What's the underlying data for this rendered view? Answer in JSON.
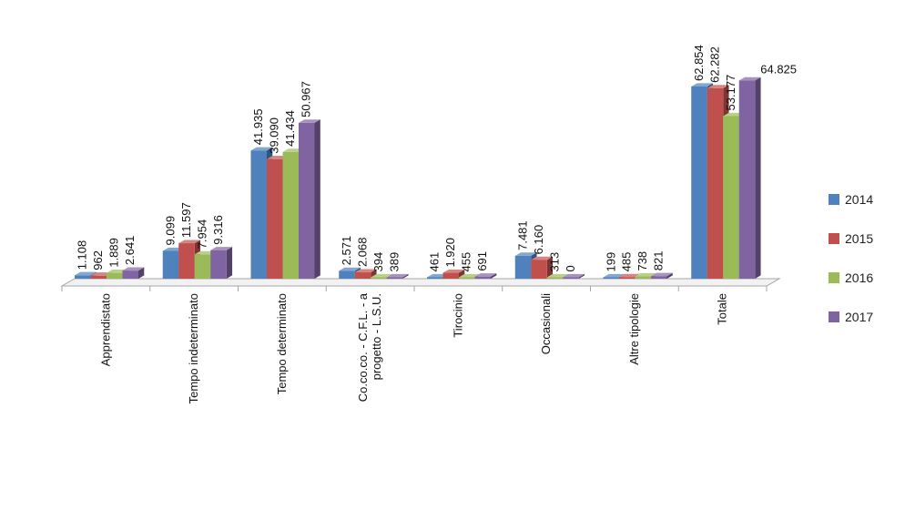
{
  "chart_data": {
    "type": "bar",
    "title": "",
    "xlabel": "",
    "ylabel": "",
    "ylim": [
      0,
      70000
    ],
    "grid": false,
    "legend_position": "right",
    "categories": [
      "Apprendistato",
      "Tempo indeterminato",
      "Tempo determinato",
      "Co.co.co. - C.F.L. - a progetto - L.S.U.",
      "Tirocinio",
      "Occasionali",
      "Altre tipologie",
      "Totale"
    ],
    "category_lines": [
      [
        "Apprendistato"
      ],
      [
        "Tempo indeterminato"
      ],
      [
        "Tempo determinato"
      ],
      [
        "Co.co.co. - C.F.L. - a",
        "progetto - L.S.U."
      ],
      [
        "Tirocinio"
      ],
      [
        "Occasionali"
      ],
      [
        "Altre tipologie"
      ],
      [
        "Totale"
      ]
    ],
    "series": [
      {
        "name": "2014",
        "color": "#4f81bd",
        "values": [
          1108,
          9099,
          41935,
          2571,
          461,
          7481,
          199,
          62854
        ],
        "labels": [
          "1.108",
          "9.099",
          "41.935",
          "2.571",
          "461",
          "7.481",
          "199",
          "62.854"
        ]
      },
      {
        "name": "2015",
        "color": "#c0504d",
        "values": [
          962,
          11597,
          39090,
          2068,
          1920,
          6160,
          485,
          62282
        ],
        "labels": [
          "962",
          "11.597",
          "39.090",
          "2.068",
          "1.920",
          "6.160",
          "485",
          "62.282"
        ]
      },
      {
        "name": "2016",
        "color": "#9bbb59",
        "values": [
          1889,
          7954,
          41434,
          394,
          455,
          313,
          738,
          53177
        ],
        "labels": [
          "1.889",
          "7.954",
          "41.434",
          "394",
          "455",
          "313",
          "738",
          "53.177"
        ]
      },
      {
        "name": "2017",
        "color": "#8064a2",
        "values": [
          2641,
          9316,
          50967,
          389,
          691,
          0,
          821,
          64825
        ],
        "labels": [
          "2.641",
          "9.316",
          "50.967",
          "389",
          "691",
          "0",
          "821",
          "64.825"
        ]
      }
    ]
  }
}
